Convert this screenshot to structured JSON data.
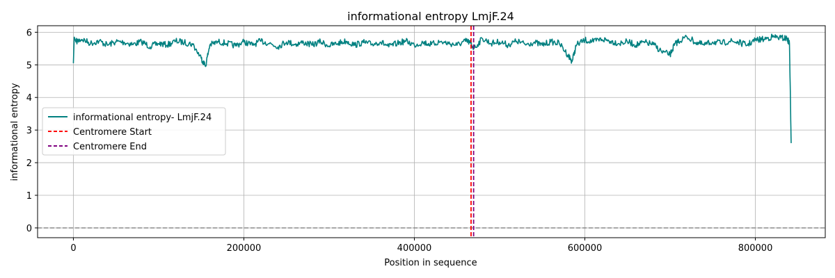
{
  "chart_data": {
    "type": "line",
    "title": "informational entropy LmjF.24",
    "xlabel": "Position in sequence",
    "ylabel": "informational entropy",
    "xlim": [
      -42000,
      882000
    ],
    "ylim": [
      -0.3,
      6.2
    ],
    "xticks": [
      0,
      200000,
      400000,
      600000,
      800000
    ],
    "yticks": [
      0,
      1,
      2,
      3,
      4,
      5,
      6
    ],
    "grid": true,
    "legend_position": "center-left",
    "series": [
      {
        "name": "informational entropy- LmjF.24",
        "color": "#008080",
        "style": "solid",
        "x": [
          0,
          1000,
          3000,
          10000,
          20000,
          30000,
          40000,
          50000,
          60000,
          70000,
          80000,
          90000,
          100000,
          110000,
          120000,
          130000,
          140000,
          150000,
          155000,
          160000,
          170000,
          180000,
          190000,
          200000,
          210000,
          220000,
          230000,
          240000,
          250000,
          260000,
          270000,
          280000,
          290000,
          300000,
          310000,
          320000,
          330000,
          340000,
          350000,
          360000,
          370000,
          380000,
          390000,
          400000,
          410000,
          420000,
          430000,
          440000,
          450000,
          460000,
          465000,
          470000,
          480000,
          490000,
          500000,
          510000,
          520000,
          530000,
          540000,
          550000,
          560000,
          570000,
          580000,
          585000,
          590000,
          600000,
          610000,
          620000,
          630000,
          640000,
          650000,
          660000,
          670000,
          680000,
          690000,
          700000,
          705000,
          710000,
          720000,
          730000,
          740000,
          750000,
          760000,
          770000,
          780000,
          790000,
          800000,
          810000,
          820000,
          830000,
          837000,
          840000,
          842000
        ],
        "y": [
          5.05,
          5.85,
          5.7,
          5.78,
          5.65,
          5.72,
          5.6,
          5.7,
          5.68,
          5.62,
          5.7,
          5.55,
          5.65,
          5.6,
          5.72,
          5.68,
          5.62,
          5.2,
          4.95,
          5.6,
          5.7,
          5.65,
          5.58,
          5.7,
          5.6,
          5.72,
          5.65,
          5.55,
          5.7,
          5.62,
          5.68,
          5.6,
          5.7,
          5.58,
          5.65,
          5.72,
          5.6,
          5.68,
          5.62,
          5.7,
          5.55,
          5.65,
          5.72,
          5.6,
          5.68,
          5.62,
          5.7,
          5.65,
          5.6,
          5.72,
          5.68,
          5.5,
          5.8,
          5.65,
          5.7,
          5.6,
          5.72,
          5.62,
          5.68,
          5.6,
          5.7,
          5.65,
          5.3,
          5.1,
          5.6,
          5.75,
          5.7,
          5.78,
          5.72,
          5.65,
          5.7,
          5.6,
          5.68,
          5.62,
          5.4,
          5.3,
          5.6,
          5.72,
          5.85,
          5.68,
          5.6,
          5.7,
          5.65,
          5.72,
          5.68,
          5.6,
          5.75,
          5.78,
          5.85,
          5.82,
          5.8,
          5.65,
          2.6
        ]
      }
    ],
    "vlines": [
      {
        "name": "Centromere Start",
        "x": 466500,
        "color": "#ff0000",
        "style": "dashed"
      },
      {
        "name": "Centromere End",
        "x": 469500,
        "color": "#800080",
        "style": "dashed"
      }
    ],
    "hlines": [
      {
        "y": 0,
        "color": "#808080",
        "style": "dashed"
      }
    ]
  }
}
